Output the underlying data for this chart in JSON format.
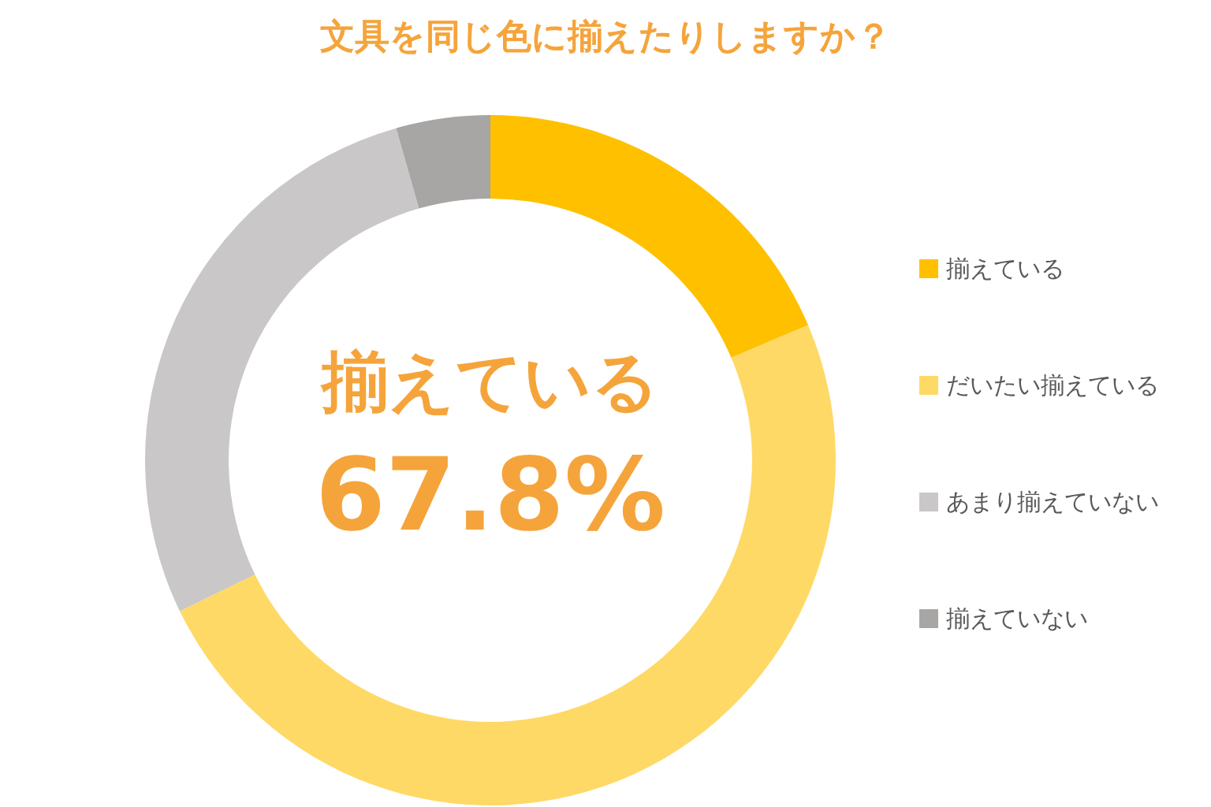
{
  "chart_data": {
    "type": "donut",
    "title": "文具を同じ色に揃えたりしますか？",
    "categories": [
      "揃えている",
      "だいたい揃えている",
      "あまり揃えていない",
      "揃えていない"
    ],
    "values": [
      18.6,
      49.2,
      27.8,
      4.4
    ],
    "colors": [
      "#ffc000",
      "#ffd966",
      "#c9c7c7",
      "#a8a5a5"
    ],
    "legend": "right",
    "annotations": [
      "揃えている",
      "67.8%"
    ]
  }
}
